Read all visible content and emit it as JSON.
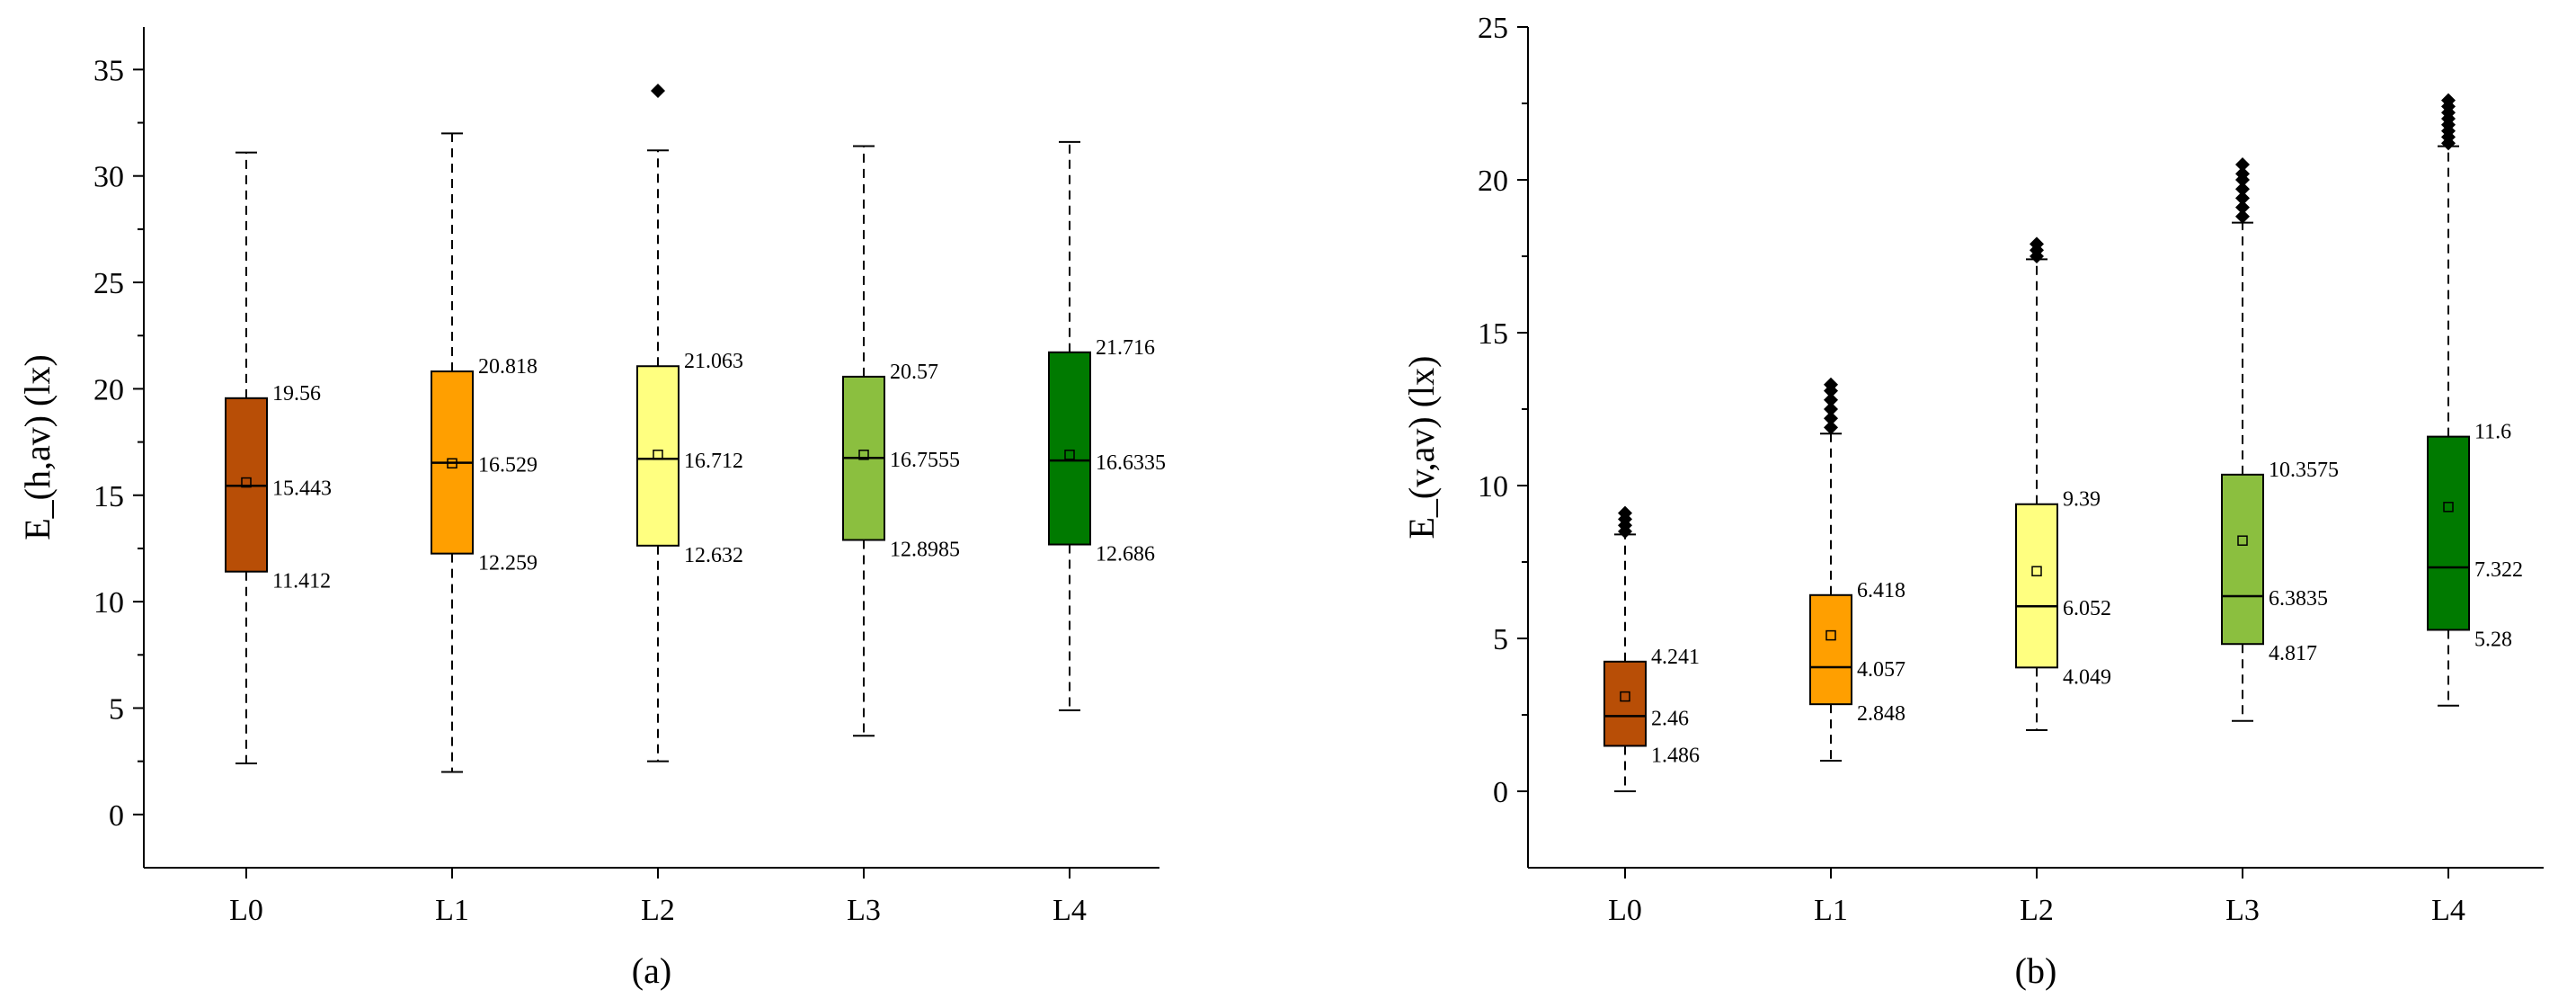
{
  "chart_data": [
    {
      "type": "box",
      "panel": "(a)",
      "ylabel": "E_(h,av) (lx)",
      "xlabel": "",
      "ylim": [
        -2.5,
        37
      ],
      "yticks": [
        0,
        5,
        10,
        15,
        20,
        25,
        30,
        35
      ],
      "categories": [
        "L0",
        "L1",
        "L2",
        "L3",
        "L4"
      ],
      "colors": [
        "#b84e06",
        "#ff9f00",
        "#ffff80",
        "#8bbf3f",
        "#007a00"
      ],
      "boxes": [
        {
          "whisker_low": 2.4,
          "q1": 11.412,
          "median": 15.443,
          "mean": 15.6,
          "q3": 19.56,
          "whisker_high": 31.1,
          "outliers": [],
          "q1_label": "11.412",
          "median_label": "15.443",
          "q3_label": "19.56"
        },
        {
          "whisker_low": 2.0,
          "q1": 12.259,
          "median": 16.529,
          "mean": 16.5,
          "q3": 20.818,
          "whisker_high": 32.0,
          "outliers": [],
          "q1_label": "12.259",
          "median_label": "16.529",
          "q3_label": "20.818"
        },
        {
          "whisker_low": 2.5,
          "q1": 12.632,
          "median": 16.712,
          "mean": 16.9,
          "q3": 21.063,
          "whisker_high": 31.2,
          "outliers": [
            34.0
          ],
          "q1_label": "12.632",
          "median_label": "16.712",
          "q3_label": "21.063"
        },
        {
          "whisker_low": 3.7,
          "q1": 12.8985,
          "median": 16.7555,
          "mean": 16.9,
          "q3": 20.57,
          "whisker_high": 31.4,
          "outliers": [],
          "q1_label": "12.8985",
          "median_label": "16.7555",
          "q3_label": "20.57"
        },
        {
          "whisker_low": 4.9,
          "q1": 12.686,
          "median": 16.6335,
          "mean": 16.9,
          "q3": 21.716,
          "whisker_high": 31.6,
          "outliers": [],
          "q1_label": "12.686",
          "median_label": "16.6335",
          "q3_label": "21.716"
        }
      ]
    },
    {
      "type": "box",
      "panel": "(b)",
      "ylabel": "E_(v,av) (lx)",
      "xlabel": "",
      "ylim": [
        -2.5,
        25
      ],
      "yticks": [
        0,
        5,
        10,
        15,
        20,
        25
      ],
      "categories": [
        "L0",
        "L1",
        "L2",
        "L3",
        "L4"
      ],
      "colors": [
        "#b84e06",
        "#ff9f00",
        "#ffff80",
        "#8bbf3f",
        "#007a00"
      ],
      "boxes": [
        {
          "whisker_low": 0.0,
          "q1": 1.486,
          "median": 2.46,
          "mean": 3.1,
          "q3": 4.241,
          "whisker_high": 8.4,
          "outliers": [
            8.5,
            8.7,
            8.9,
            9.1
          ],
          "q1_label": "1.486",
          "median_label": "2.46",
          "q3_label": "4.241"
        },
        {
          "whisker_low": 1.0,
          "q1": 2.848,
          "median": 4.057,
          "mean": 5.1,
          "q3": 6.418,
          "whisker_high": 11.7,
          "outliers": [
            11.9,
            12.2,
            12.5,
            12.8,
            13.1,
            13.3
          ],
          "q1_label": "2.848",
          "median_label": "4.057",
          "q3_label": "6.418"
        },
        {
          "whisker_low": 2.0,
          "q1": 4.049,
          "median": 6.052,
          "mean": 7.2,
          "q3": 9.39,
          "whisker_high": 17.4,
          "outliers": [
            17.5,
            17.7,
            17.9
          ],
          "q1_label": "4.049",
          "median_label": "6.052",
          "q3_label": "9.39"
        },
        {
          "whisker_low": 2.3,
          "q1": 4.817,
          "median": 6.3835,
          "mean": 8.2,
          "q3": 10.3575,
          "whisker_high": 18.6,
          "outliers": [
            18.8,
            19.1,
            19.4,
            19.7,
            20.0,
            20.2,
            20.5
          ],
          "q1_label": "4.817",
          "median_label": "6.3835",
          "q3_label": "10.3575"
        },
        {
          "whisker_low": 2.8,
          "q1": 5.28,
          "median": 7.322,
          "mean": 9.3,
          "q3": 11.6,
          "whisker_high": 21.1,
          "outliers": [
            21.2,
            21.4,
            21.6,
            21.8,
            22.0,
            22.2,
            22.4,
            22.6
          ],
          "q1_label": "5.28",
          "median_label": "7.322",
          "q3_label": "11.6"
        }
      ]
    }
  ]
}
